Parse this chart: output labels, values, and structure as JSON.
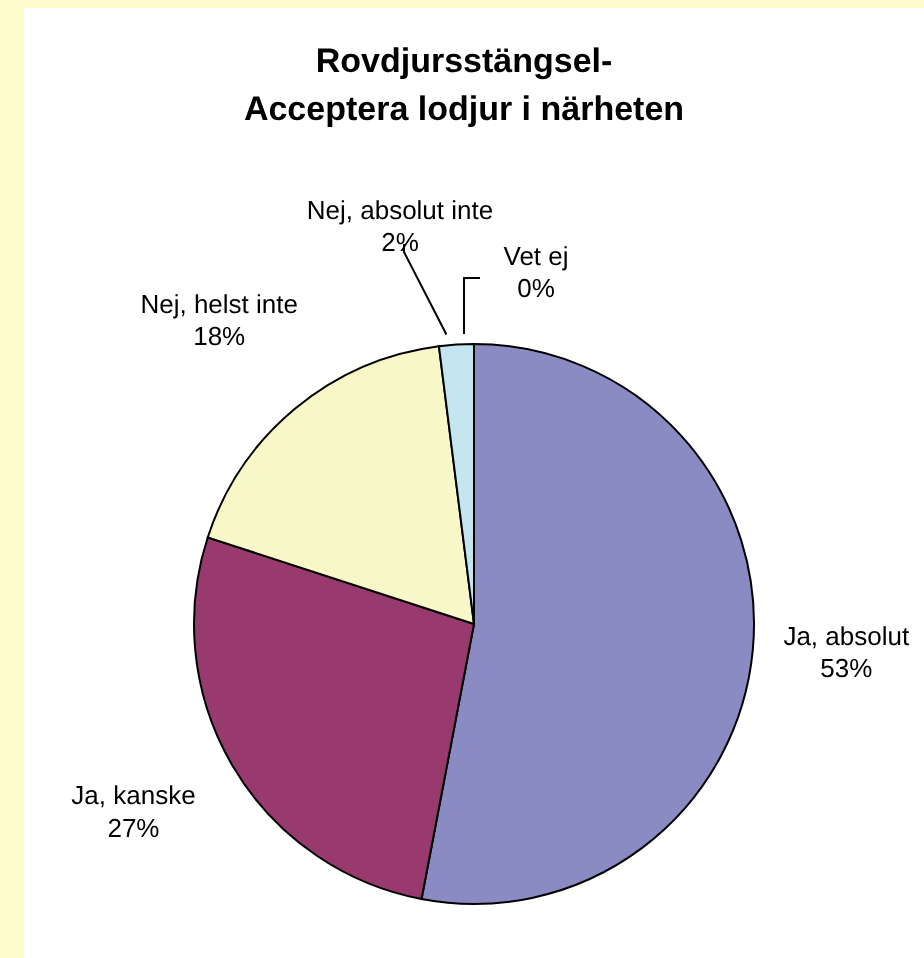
{
  "chart_data": {
    "type": "pie",
    "title": "Rovdjursstängsel-\nAcceptera lodjur i närheten",
    "categories": [
      "Ja, absolut",
      "Ja, kanske",
      "Nej, helst inte",
      "Nej, absolut inte",
      "Vet ej"
    ],
    "values": [
      53,
      27,
      18,
      2,
      0
    ],
    "colors": [
      "#8b8bc3",
      "#993a6e",
      "#f8f7c8",
      "#c5e6ef",
      "#ffffff"
    ],
    "value_labels": [
      "53%",
      "27%",
      "18%",
      "2%",
      "0%"
    ],
    "legend": false
  }
}
